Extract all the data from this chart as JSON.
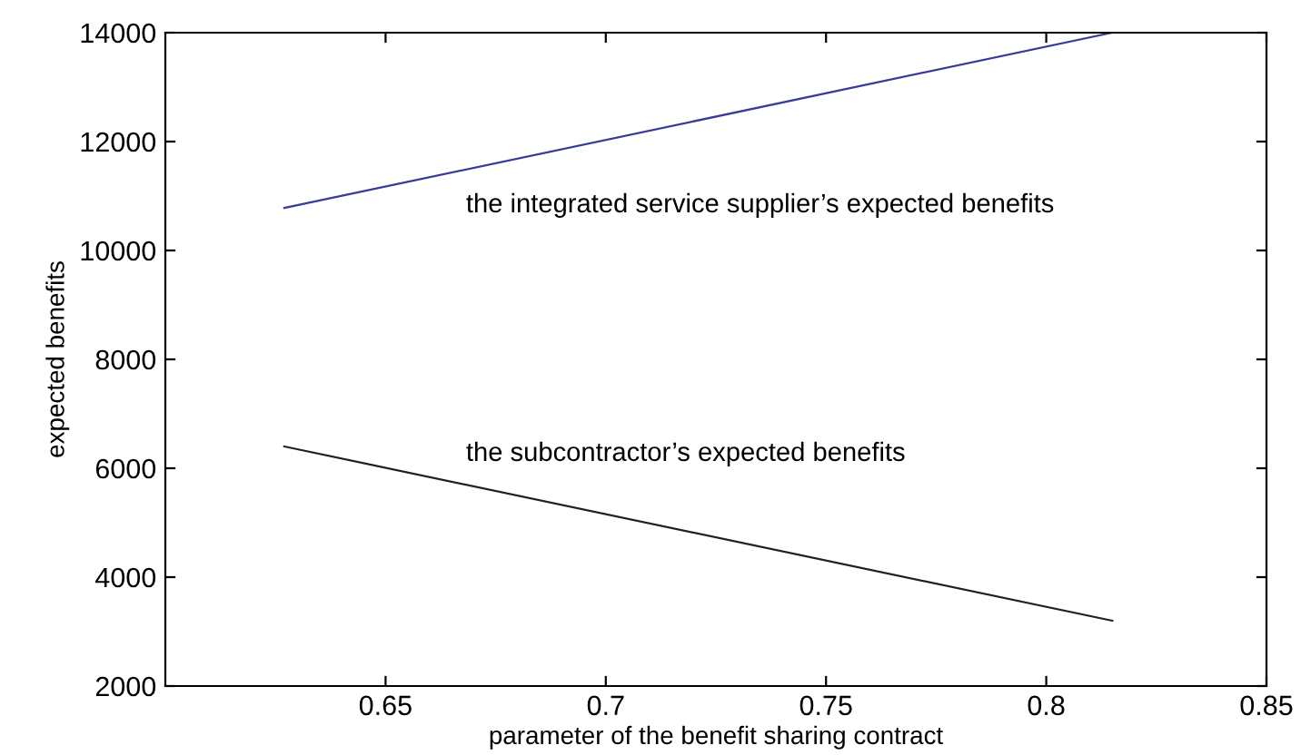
{
  "chart_data": {
    "type": "line",
    "xlabel": "parameter of the benefit sharing contract",
    "ylabel": "expected benefits",
    "xlim": [
      0.6,
      0.85
    ],
    "xticks": [
      0.65,
      0.7,
      0.75,
      0.8,
      0.85
    ],
    "ylim": [
      2000,
      14000
    ],
    "yticks": [
      2000,
      4000,
      6000,
      8000,
      10000,
      12000,
      14000
    ],
    "grid": false,
    "x": [
      0.627,
      0.815
    ],
    "marker": "none",
    "line_style": "solid",
    "series": [
      {
        "name": "the integrated service supplier’s expected benefits",
        "color": "#3a3a9a",
        "values": [
          10780,
          14000
        ]
      },
      {
        "name": "the subcontractor’s expected benefits",
        "color": "#202020",
        "values": [
          6400,
          3200
        ]
      }
    ]
  }
}
